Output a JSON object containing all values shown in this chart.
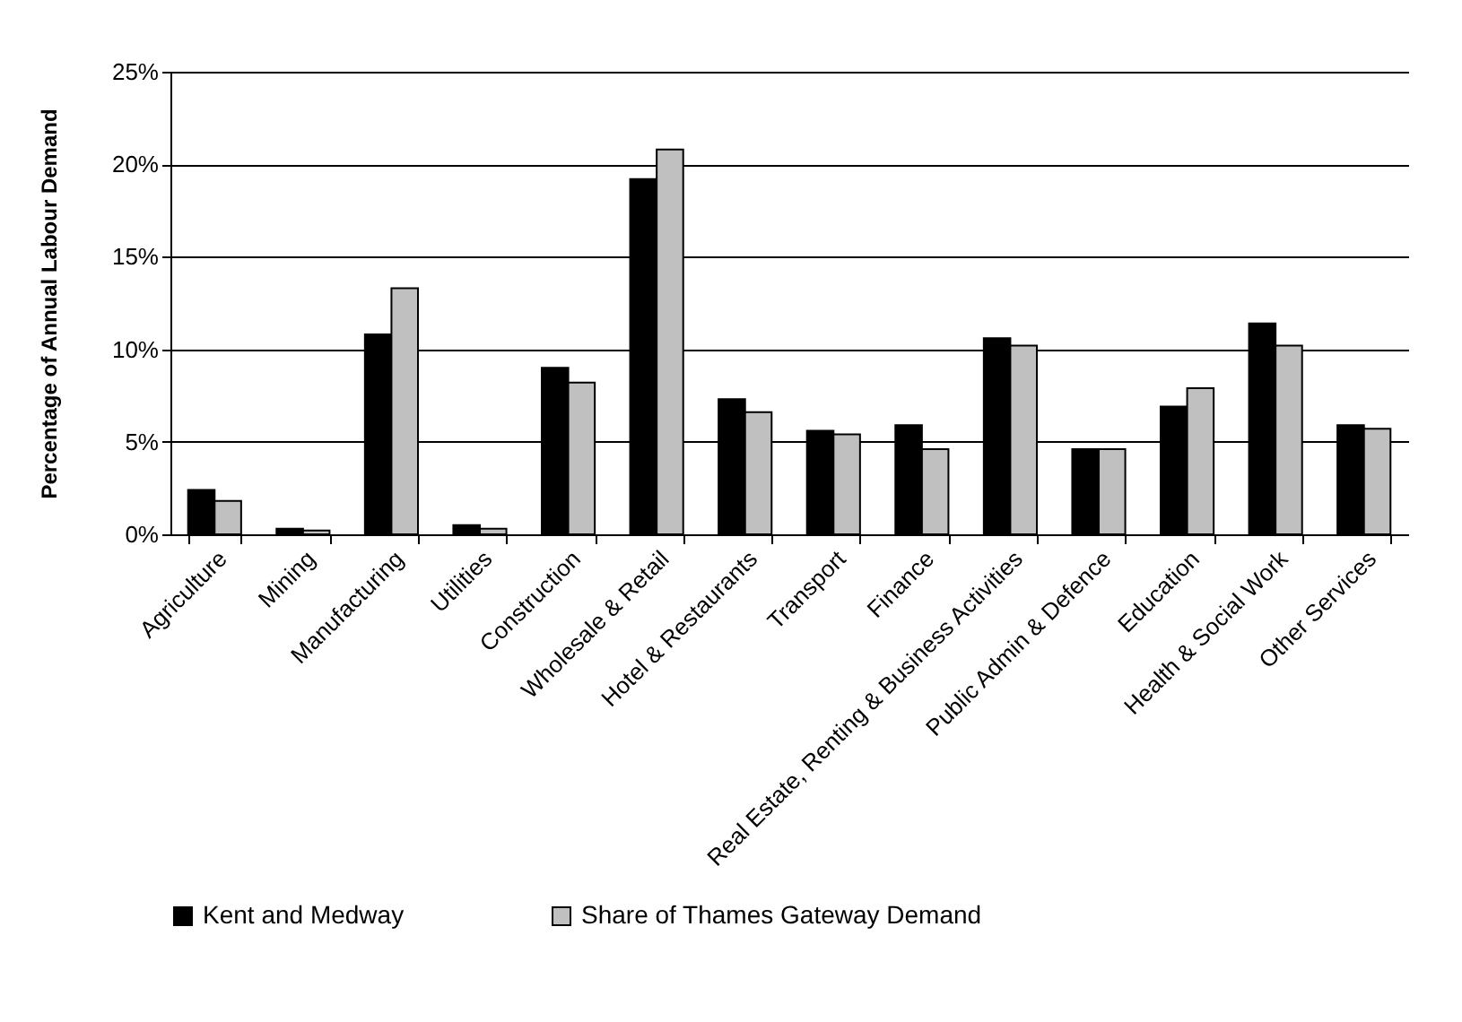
{
  "chart_data": {
    "type": "bar",
    "ylabel": "Percentage of Annual Labour Demand",
    "categories": [
      "Agriculture",
      "Mining",
      "Manufacturing",
      "Utilities",
      "Construction",
      "Wholesale & Retail",
      "Hotel & Restaurants",
      "Transport",
      "Finance",
      "Real Estate, Renting & Business Activities",
      "Public Admin & Defence",
      "Education",
      "Health & Social Work",
      "Other Services"
    ],
    "series": [
      {
        "name": "Kent and Medway",
        "color": "#000000",
        "values": [
          2.4,
          0.3,
          10.8,
          0.5,
          9.0,
          19.2,
          7.3,
          5.6,
          5.9,
          10.6,
          4.6,
          6.9,
          11.4,
          5.9
        ]
      },
      {
        "name": "Share of Thames Gateway Demand",
        "color": "#c0c0c0",
        "values": [
          1.8,
          0.2,
          13.3,
          0.3,
          8.2,
          20.8,
          6.6,
          5.4,
          4.6,
          10.2,
          4.6,
          7.9,
          10.2,
          5.7
        ]
      }
    ],
    "ylim": [
      0,
      25
    ],
    "yticks": [
      {
        "value": 0,
        "label": "0%"
      },
      {
        "value": 5,
        "label": "5%"
      },
      {
        "value": 10,
        "label": "10%"
      },
      {
        "value": 15,
        "label": "15%"
      },
      {
        "value": 20,
        "label": "20%"
      },
      {
        "value": 25,
        "label": "25%"
      }
    ],
    "grid": "y",
    "legend": "bottom"
  }
}
